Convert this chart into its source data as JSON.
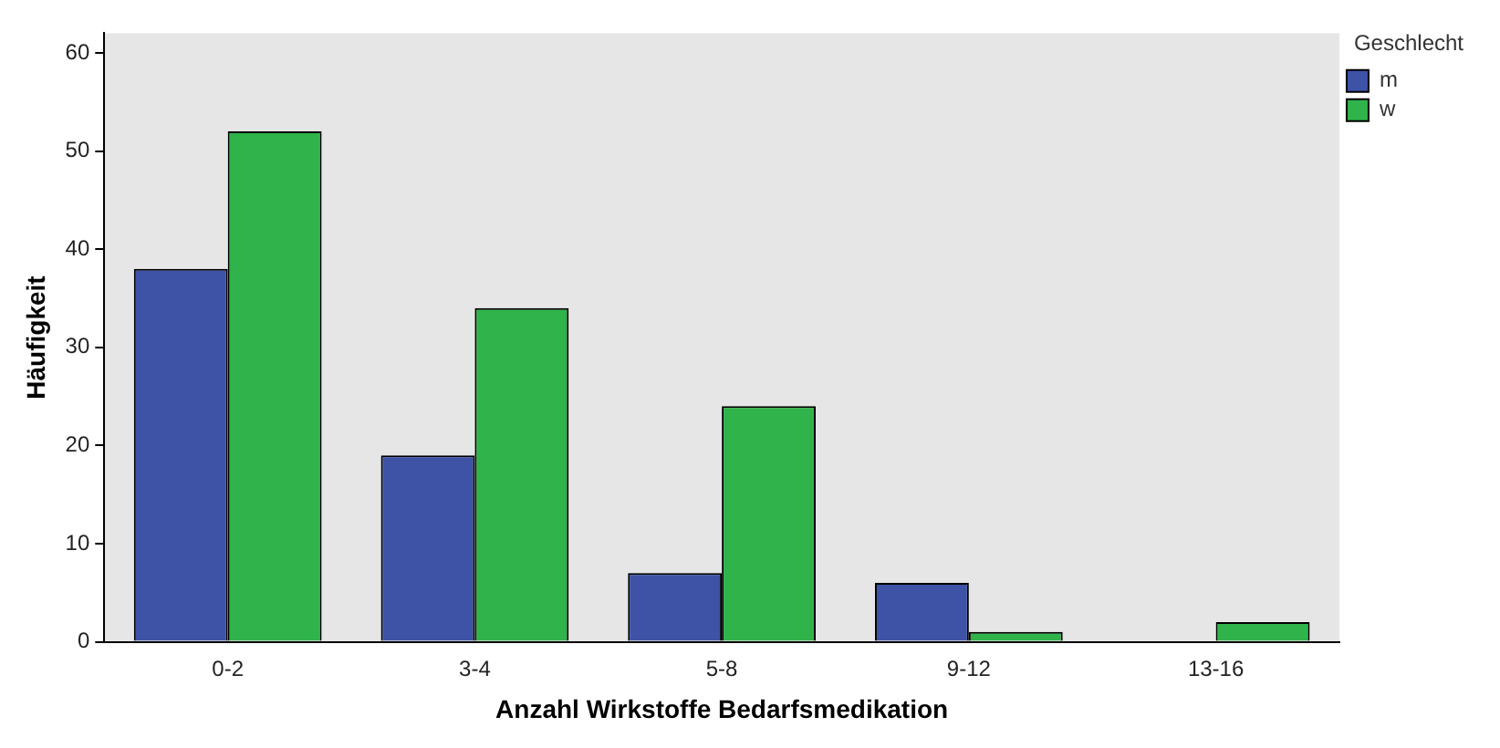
{
  "chart_data": {
    "type": "bar",
    "xlabel": "Anzahl Wirkstoffe Bedarfsmedikation",
    "ylabel": "Häufigkeit",
    "legend_title": "Geschlecht",
    "categories": [
      "0-2",
      "3-4",
      "5-8",
      "9-12",
      "13-16"
    ],
    "series": [
      {
        "name": "m",
        "color": "#3e53a6",
        "values": [
          38,
          19,
          7,
          6,
          0
        ]
      },
      {
        "name": "w",
        "color": "#2fb34a",
        "values": [
          52,
          34,
          24,
          1,
          2
        ]
      }
    ],
    "ylim": [
      0,
      62
    ],
    "yticks": [
      0,
      10,
      20,
      30,
      40,
      50,
      60
    ],
    "grid": false,
    "legend": "right"
  }
}
